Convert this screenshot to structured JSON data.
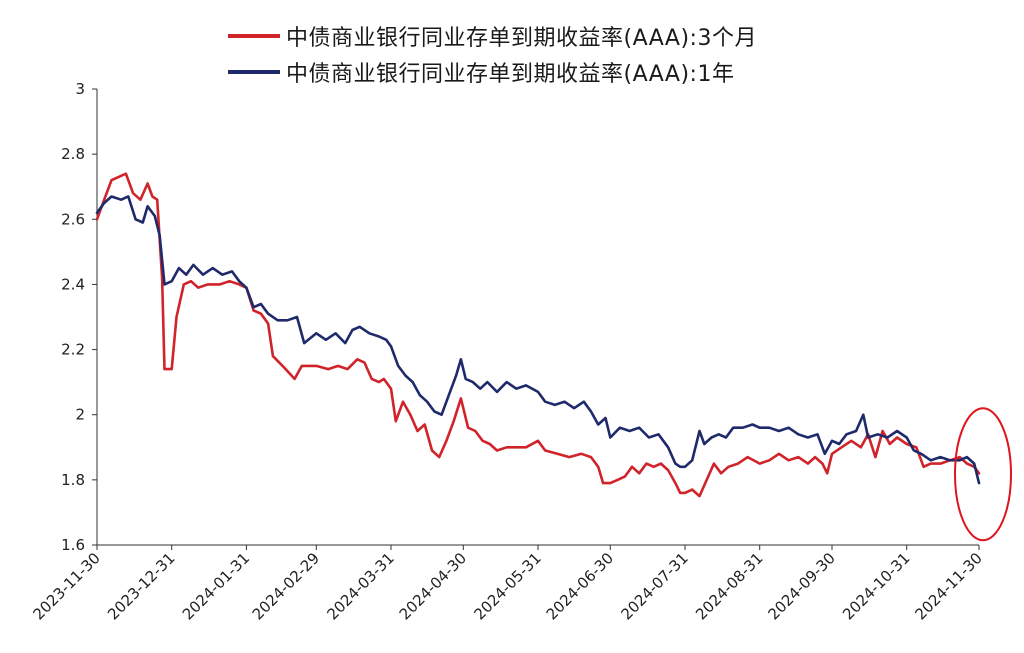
{
  "chart_data": {
    "type": "line",
    "title": "",
    "xlabel": "",
    "ylabel": "",
    "ylim": [
      1.6,
      3.0
    ],
    "yticks": [
      "3",
      "2.8",
      "2.6",
      "2.4",
      "2.2",
      "2",
      "1.8",
      "1.6"
    ],
    "x_tick_labels": [
      "2023-11-30",
      "2023-12-31",
      "2024-01-31",
      "2024-02-29",
      "2024-03-31",
      "2024-04-30",
      "2024-05-31",
      "2024-06-30",
      "2024-07-31",
      "2024-08-31",
      "2024-09-30",
      "2024-10-31",
      "2024-11-30"
    ],
    "grid": false,
    "legend_position": "top",
    "highlight_annotation": "red ellipse around the end of the series near 2024-11-30",
    "series": [
      {
        "name": "中债商业银行同业存单到期收益率(AAA):3个月",
        "color": "#d0232a",
        "points": [
          [
            "2023-11-30",
            2.6
          ],
          [
            "2023-12-03",
            2.66
          ],
          [
            "2023-12-06",
            2.72
          ],
          [
            "2023-12-09",
            2.73
          ],
          [
            "2023-12-12",
            2.74
          ],
          [
            "2023-12-15",
            2.68
          ],
          [
            "2023-12-18",
            2.66
          ],
          [
            "2023-12-21",
            2.71
          ],
          [
            "2023-12-23",
            2.67
          ],
          [
            "2023-12-25",
            2.66
          ],
          [
            "2023-12-27",
            2.42
          ],
          [
            "2023-12-28",
            2.14
          ],
          [
            "2023-12-31",
            2.14
          ],
          [
            "2024-01-02",
            2.3
          ],
          [
            "2024-01-05",
            2.4
          ],
          [
            "2024-01-08",
            2.41
          ],
          [
            "2024-01-11",
            2.39
          ],
          [
            "2024-01-15",
            2.4
          ],
          [
            "2024-01-20",
            2.4
          ],
          [
            "2024-01-24",
            2.41
          ],
          [
            "2024-01-28",
            2.4
          ],
          [
            "2024-01-31",
            2.39
          ],
          [
            "2024-02-03",
            2.32
          ],
          [
            "2024-02-06",
            2.31
          ],
          [
            "2024-02-09",
            2.28
          ],
          [
            "2024-02-11",
            2.18
          ],
          [
            "2024-02-15",
            2.15
          ],
          [
            "2024-02-20",
            2.11
          ],
          [
            "2024-02-23",
            2.15
          ],
          [
            "2024-02-29",
            2.15
          ],
          [
            "2024-03-05",
            2.14
          ],
          [
            "2024-03-09",
            2.15
          ],
          [
            "2024-03-13",
            2.14
          ],
          [
            "2024-03-17",
            2.17
          ],
          [
            "2024-03-20",
            2.16
          ],
          [
            "2024-03-23",
            2.11
          ],
          [
            "2024-03-26",
            2.1
          ],
          [
            "2024-03-28",
            2.11
          ],
          [
            "2024-03-31",
            2.08
          ],
          [
            "2024-04-02",
            1.98
          ],
          [
            "2024-04-05",
            2.04
          ],
          [
            "2024-04-08",
            2.0
          ],
          [
            "2024-04-11",
            1.95
          ],
          [
            "2024-04-14",
            1.97
          ],
          [
            "2024-04-17",
            1.89
          ],
          [
            "2024-04-20",
            1.87
          ],
          [
            "2024-04-23",
            1.92
          ],
          [
            "2024-04-26",
            1.98
          ],
          [
            "2024-04-29",
            2.05
          ],
          [
            "2024-05-02",
            1.96
          ],
          [
            "2024-05-05",
            1.95
          ],
          [
            "2024-05-08",
            1.92
          ],
          [
            "2024-05-11",
            1.91
          ],
          [
            "2024-05-14",
            1.89
          ],
          [
            "2024-05-18",
            1.9
          ],
          [
            "2024-05-22",
            1.9
          ],
          [
            "2024-05-26",
            1.9
          ],
          [
            "2024-05-31",
            1.92
          ],
          [
            "2024-06-03",
            1.89
          ],
          [
            "2024-06-08",
            1.88
          ],
          [
            "2024-06-13",
            1.87
          ],
          [
            "2024-06-18",
            1.88
          ],
          [
            "2024-06-22",
            1.87
          ],
          [
            "2024-06-25",
            1.84
          ],
          [
            "2024-06-27",
            1.79
          ],
          [
            "2024-06-30",
            1.79
          ],
          [
            "2024-07-03",
            1.8
          ],
          [
            "2024-07-06",
            1.81
          ],
          [
            "2024-07-09",
            1.84
          ],
          [
            "2024-07-12",
            1.82
          ],
          [
            "2024-07-15",
            1.85
          ],
          [
            "2024-07-18",
            1.84
          ],
          [
            "2024-07-21",
            1.85
          ],
          [
            "2024-07-24",
            1.83
          ],
          [
            "2024-07-27",
            1.79
          ],
          [
            "2024-07-29",
            1.76
          ],
          [
            "2024-07-31",
            1.76
          ],
          [
            "2024-08-03",
            1.77
          ],
          [
            "2024-08-06",
            1.75
          ],
          [
            "2024-08-09",
            1.8
          ],
          [
            "2024-08-12",
            1.85
          ],
          [
            "2024-08-15",
            1.82
          ],
          [
            "2024-08-18",
            1.84
          ],
          [
            "2024-08-22",
            1.85
          ],
          [
            "2024-08-26",
            1.87
          ],
          [
            "2024-08-31",
            1.85
          ],
          [
            "2024-09-04",
            1.86
          ],
          [
            "2024-09-08",
            1.88
          ],
          [
            "2024-09-12",
            1.86
          ],
          [
            "2024-09-16",
            1.87
          ],
          [
            "2024-09-20",
            1.85
          ],
          [
            "2024-09-23",
            1.87
          ],
          [
            "2024-09-26",
            1.85
          ],
          [
            "2024-09-28",
            1.82
          ],
          [
            "2024-09-30",
            1.88
          ],
          [
            "2024-10-04",
            1.9
          ],
          [
            "2024-10-08",
            1.92
          ],
          [
            "2024-10-12",
            1.9
          ],
          [
            "2024-10-15",
            1.94
          ],
          [
            "2024-10-18",
            1.87
          ],
          [
            "2024-10-21",
            1.95
          ],
          [
            "2024-10-24",
            1.91
          ],
          [
            "2024-10-27",
            1.93
          ],
          [
            "2024-10-31",
            1.91
          ],
          [
            "2024-11-04",
            1.9
          ],
          [
            "2024-11-07",
            1.84
          ],
          [
            "2024-11-10",
            1.85
          ],
          [
            "2024-11-14",
            1.85
          ],
          [
            "2024-11-18",
            1.86
          ],
          [
            "2024-11-22",
            1.87
          ],
          [
            "2024-11-25",
            1.85
          ],
          [
            "2024-11-28",
            1.84
          ],
          [
            "2024-11-30",
            1.82
          ]
        ]
      },
      {
        "name": "中债商业银行同业存单到期收益率(AAA):1年",
        "color": "#1f2a6b",
        "points": [
          [
            "2023-11-30",
            2.62
          ],
          [
            "2023-12-03",
            2.65
          ],
          [
            "2023-12-06",
            2.67
          ],
          [
            "2023-12-10",
            2.66
          ],
          [
            "2023-12-13",
            2.67
          ],
          [
            "2023-12-16",
            2.6
          ],
          [
            "2023-12-19",
            2.59
          ],
          [
            "2023-12-21",
            2.64
          ],
          [
            "2023-12-24",
            2.61
          ],
          [
            "2023-12-26",
            2.55
          ],
          [
            "2023-12-28",
            2.4
          ],
          [
            "2023-12-31",
            2.41
          ],
          [
            "2024-01-03",
            2.45
          ],
          [
            "2024-01-06",
            2.43
          ],
          [
            "2024-01-09",
            2.46
          ],
          [
            "2024-01-13",
            2.43
          ],
          [
            "2024-01-17",
            2.45
          ],
          [
            "2024-01-21",
            2.43
          ],
          [
            "2024-01-25",
            2.44
          ],
          [
            "2024-01-28",
            2.41
          ],
          [
            "2024-01-31",
            2.39
          ],
          [
            "2024-02-03",
            2.33
          ],
          [
            "2024-02-06",
            2.34
          ],
          [
            "2024-02-09",
            2.31
          ],
          [
            "2024-02-13",
            2.29
          ],
          [
            "2024-02-17",
            2.29
          ],
          [
            "2024-02-21",
            2.3
          ],
          [
            "2024-02-24",
            2.22
          ],
          [
            "2024-02-29",
            2.25
          ],
          [
            "2024-03-04",
            2.23
          ],
          [
            "2024-03-08",
            2.25
          ],
          [
            "2024-03-12",
            2.22
          ],
          [
            "2024-03-15",
            2.26
          ],
          [
            "2024-03-18",
            2.27
          ],
          [
            "2024-03-22",
            2.25
          ],
          [
            "2024-03-26",
            2.24
          ],
          [
            "2024-03-29",
            2.23
          ],
          [
            "2024-03-31",
            2.21
          ],
          [
            "2024-04-03",
            2.15
          ],
          [
            "2024-04-06",
            2.12
          ],
          [
            "2024-04-09",
            2.1
          ],
          [
            "2024-04-12",
            2.06
          ],
          [
            "2024-04-15",
            2.04
          ],
          [
            "2024-04-18",
            2.01
          ],
          [
            "2024-04-21",
            2.0
          ],
          [
            "2024-04-24",
            2.06
          ],
          [
            "2024-04-27",
            2.12
          ],
          [
            "2024-04-29",
            2.17
          ],
          [
            "2024-05-01",
            2.11
          ],
          [
            "2024-05-04",
            2.1
          ],
          [
            "2024-05-07",
            2.08
          ],
          [
            "2024-05-10",
            2.1
          ],
          [
            "2024-05-14",
            2.07
          ],
          [
            "2024-05-18",
            2.1
          ],
          [
            "2024-05-22",
            2.08
          ],
          [
            "2024-05-26",
            2.09
          ],
          [
            "2024-05-31",
            2.07
          ],
          [
            "2024-06-03",
            2.04
          ],
          [
            "2024-06-07",
            2.03
          ],
          [
            "2024-06-11",
            2.04
          ],
          [
            "2024-06-15",
            2.02
          ],
          [
            "2024-06-19",
            2.04
          ],
          [
            "2024-06-22",
            2.01
          ],
          [
            "2024-06-25",
            1.97
          ],
          [
            "2024-06-28",
            1.99
          ],
          [
            "2024-06-30",
            1.93
          ],
          [
            "2024-07-04",
            1.96
          ],
          [
            "2024-07-08",
            1.95
          ],
          [
            "2024-07-12",
            1.96
          ],
          [
            "2024-07-16",
            1.93
          ],
          [
            "2024-07-20",
            1.94
          ],
          [
            "2024-07-24",
            1.9
          ],
          [
            "2024-07-27",
            1.85
          ],
          [
            "2024-07-29",
            1.84
          ],
          [
            "2024-07-31",
            1.84
          ],
          [
            "2024-08-03",
            1.86
          ],
          [
            "2024-08-06",
            1.95
          ],
          [
            "2024-08-08",
            1.91
          ],
          [
            "2024-08-11",
            1.93
          ],
          [
            "2024-08-14",
            1.94
          ],
          [
            "2024-08-17",
            1.93
          ],
          [
            "2024-08-20",
            1.96
          ],
          [
            "2024-08-24",
            1.96
          ],
          [
            "2024-08-28",
            1.97
          ],
          [
            "2024-08-31",
            1.96
          ],
          [
            "2024-09-04",
            1.96
          ],
          [
            "2024-09-08",
            1.95
          ],
          [
            "2024-09-12",
            1.96
          ],
          [
            "2024-09-16",
            1.94
          ],
          [
            "2024-09-20",
            1.93
          ],
          [
            "2024-09-24",
            1.94
          ],
          [
            "2024-09-27",
            1.88
          ],
          [
            "2024-09-30",
            1.92
          ],
          [
            "2024-10-03",
            1.91
          ],
          [
            "2024-10-06",
            1.94
          ],
          [
            "2024-10-10",
            1.95
          ],
          [
            "2024-10-13",
            2.0
          ],
          [
            "2024-10-15",
            1.93
          ],
          [
            "2024-10-19",
            1.94
          ],
          [
            "2024-10-23",
            1.93
          ],
          [
            "2024-10-27",
            1.95
          ],
          [
            "2024-10-31",
            1.93
          ],
          [
            "2024-11-03",
            1.89
          ],
          [
            "2024-11-06",
            1.88
          ],
          [
            "2024-11-10",
            1.86
          ],
          [
            "2024-11-14",
            1.87
          ],
          [
            "2024-11-18",
            1.86
          ],
          [
            "2024-11-22",
            1.86
          ],
          [
            "2024-11-25",
            1.87
          ],
          [
            "2024-11-28",
            1.85
          ],
          [
            "2024-11-30",
            1.79
          ]
        ]
      }
    ]
  }
}
